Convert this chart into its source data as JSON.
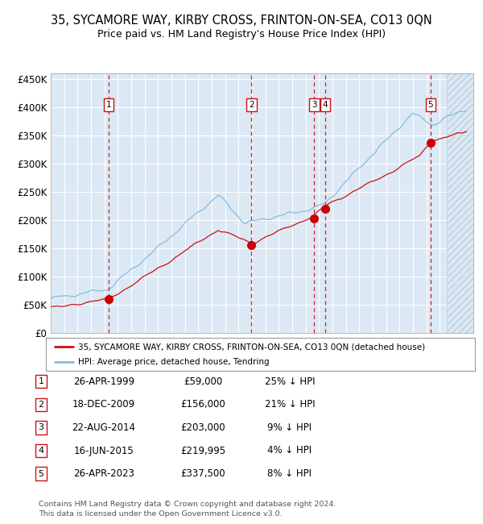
{
  "title": "35, SYCAMORE WAY, KIRBY CROSS, FRINTON-ON-SEA, CO13 0QN",
  "subtitle": "Price paid vs. HM Land Registry's House Price Index (HPI)",
  "ylabel_ticks": [
    "£0",
    "£50K",
    "£100K",
    "£150K",
    "£200K",
    "£250K",
    "£300K",
    "£350K",
    "£400K",
    "£450K"
  ],
  "ytick_values": [
    0,
    50000,
    100000,
    150000,
    200000,
    250000,
    300000,
    350000,
    400000,
    450000
  ],
  "ylim": [
    0,
    460000
  ],
  "xlim_start": 1995.0,
  "xlim_end": 2026.5,
  "bg_color": "#dce9f5",
  "hatch_color": "#b8cfe0",
  "grid_color": "#ffffff",
  "hpi_color": "#88bbdd",
  "price_color": "#cc1111",
  "sale_marker_color": "#cc0000",
  "sale_dashed_color": "#cc2222",
  "legend_label_price": "35, SYCAMORE WAY, KIRBY CROSS, FRINTON-ON-SEA, CO13 0QN (detached house)",
  "legend_label_hpi": "HPI: Average price, detached house, Tendring",
  "footer": "Contains HM Land Registry data © Crown copyright and database right 2024.\nThis data is licensed under the Open Government Licence v3.0.",
  "hatch_start": 2024.5,
  "sales": [
    {
      "num": 1,
      "date_label": "26-APR-1999",
      "price_label": "£59,000",
      "hpi_label": "25% ↓ HPI",
      "year": 1999.32,
      "price": 59000
    },
    {
      "num": 2,
      "date_label": "18-DEC-2009",
      "price_label": "£156,000",
      "hpi_label": "21% ↓ HPI",
      "year": 2009.96,
      "price": 156000
    },
    {
      "num": 3,
      "date_label": "22-AUG-2014",
      "price_label": "£203,000",
      "hpi_label": "9% ↓ HPI",
      "year": 2014.64,
      "price": 203000
    },
    {
      "num": 4,
      "date_label": "16-JUN-2015",
      "price_label": "£219,995",
      "hpi_label": "4% ↓ HPI",
      "year": 2015.46,
      "price": 219995
    },
    {
      "num": 5,
      "date_label": "26-APR-2023",
      "price_label": "£337,500",
      "hpi_label": "8% ↓ HPI",
      "year": 2023.32,
      "price": 337500
    }
  ]
}
